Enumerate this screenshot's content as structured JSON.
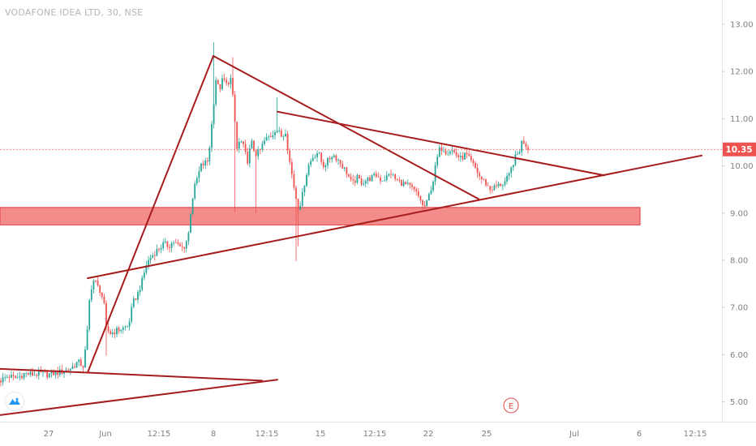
{
  "chart_data": {
    "type": "candlestick",
    "title": "VODAFONE IDEA LTD, 30, NSE",
    "y_axis": {
      "position": "right",
      "range": [
        4.75,
        13.35
      ],
      "ticks": [
        "13.00",
        "12.00",
        "11.00",
        "10.00",
        "9.00",
        "8.00",
        "7.00",
        "6.00",
        "5.00"
      ]
    },
    "x_axis": {
      "ticks": [
        "27",
        "Jun",
        "12:15",
        "8",
        "12:15",
        "15",
        "12:15",
        "22",
        "25",
        "Jul",
        "6",
        "12:15"
      ]
    },
    "last_price": "10.35",
    "colors": {
      "up": "#26a69a",
      "down": "#ef5350",
      "trendline": "#a61c1c",
      "zone": "#f26c6c"
    },
    "support_zone": {
      "low": 8.75,
      "high": 9.12
    },
    "trendlines": [
      {
        "from": [
          0,
          5.7
        ],
        "to": [
          108,
          5.62
        ]
      },
      {
        "from": [
          108,
          5.62
        ],
        "to": [
          323,
          5.45
        ]
      },
      {
        "from": [
          0,
          4.72
        ],
        "to": [
          342,
          5.47
        ]
      },
      {
        "from": [
          108,
          5.62
        ],
        "to": [
          263,
          12.33
        ]
      },
      {
        "from": [
          263,
          12.33
        ],
        "to": [
          590,
          9.3
        ]
      },
      {
        "from": [
          342,
          11.15
        ],
        "to": [
          745,
          9.8
        ]
      },
      {
        "from": [
          108,
          7.62
        ],
        "to": [
          865,
          10.22
        ]
      }
    ],
    "event_marker": {
      "label": "E"
    },
    "series_path": [
      [
        0,
        5.45
      ],
      [
        10,
        5.55
      ],
      [
        20,
        5.5
      ],
      [
        30,
        5.6
      ],
      [
        40,
        5.58
      ],
      [
        50,
        5.6
      ],
      [
        60,
        5.58
      ],
      [
        70,
        5.62
      ],
      [
        80,
        5.65
      ],
      [
        88,
        5.72
      ],
      [
        96,
        5.85
      ],
      [
        103,
        5.75
      ],
      [
        108,
        6.55
      ],
      [
        111,
        7.35
      ],
      [
        116,
        7.6
      ],
      [
        120,
        7.45
      ],
      [
        124,
        7.35
      ],
      [
        128,
        7.1
      ],
      [
        131,
        6.55
      ],
      [
        136,
        6.45
      ],
      [
        142,
        6.5
      ],
      [
        150,
        6.55
      ],
      [
        158,
        6.6
      ],
      [
        164,
        7.1
      ],
      [
        170,
        7.3
      ],
      [
        176,
        7.6
      ],
      [
        180,
        7.9
      ],
      [
        185,
        8.05
      ],
      [
        190,
        8.15
      ],
      [
        196,
        8.25
      ],
      [
        202,
        8.35
      ],
      [
        208,
        8.3
      ],
      [
        214,
        8.4
      ],
      [
        220,
        8.3
      ],
      [
        226,
        8.25
      ],
      [
        232,
        8.5
      ],
      [
        236,
        9.2
      ],
      [
        240,
        9.55
      ],
      [
        244,
        9.8
      ],
      [
        248,
        10.0
      ],
      [
        252,
        10.05
      ],
      [
        256,
        10.1
      ],
      [
        259,
        10.5
      ],
      [
        263,
        11.25
      ],
      [
        266,
        11.85
      ],
      [
        270,
        11.6
      ],
      [
        275,
        11.85
      ],
      [
        280,
        11.7
      ],
      [
        284,
        11.9
      ],
      [
        288,
        11.3
      ],
      [
        292,
        10.35
      ],
      [
        296,
        10.55
      ],
      [
        300,
        10.4
      ],
      [
        305,
        10.1
      ],
      [
        310,
        10.5
      ],
      [
        315,
        10.25
      ],
      [
        320,
        10.3
      ],
      [
        325,
        10.5
      ],
      [
        330,
        10.6
      ],
      [
        335,
        10.65
      ],
      [
        340,
        10.8
      ],
      [
        344,
        10.7
      ],
      [
        348,
        10.6
      ],
      [
        352,
        10.75
      ],
      [
        356,
        10.2
      ],
      [
        360,
        9.8
      ],
      [
        364,
        9.4
      ],
      [
        368,
        9.1
      ],
      [
        372,
        9.3
      ],
      [
        376,
        9.7
      ],
      [
        380,
        10.0
      ],
      [
        386,
        10.2
      ],
      [
        392,
        10.3
      ],
      [
        398,
        10.0
      ],
      [
        404,
        10.1
      ],
      [
        410,
        10.25
      ],
      [
        416,
        10.15
      ],
      [
        422,
        10.0
      ],
      [
        428,
        9.85
      ],
      [
        434,
        9.6
      ],
      [
        440,
        9.75
      ],
      [
        446,
        9.65
      ],
      [
        452,
        9.7
      ],
      [
        458,
        9.75
      ],
      [
        464,
        9.8
      ],
      [
        470,
        9.7
      ],
      [
        476,
        9.75
      ],
      [
        482,
        9.85
      ],
      [
        488,
        9.7
      ],
      [
        494,
        9.65
      ],
      [
        500,
        9.6
      ],
      [
        506,
        9.55
      ],
      [
        512,
        9.45
      ],
      [
        518,
        9.3
      ],
      [
        522,
        9.1
      ],
      [
        526,
        9.2
      ],
      [
        530,
        9.45
      ],
      [
        534,
        9.7
      ],
      [
        538,
        10.1
      ],
      [
        542,
        10.35
      ],
      [
        546,
        10.4
      ],
      [
        550,
        10.3
      ],
      [
        556,
        10.35
      ],
      [
        562,
        10.25
      ],
      [
        568,
        10.15
      ],
      [
        574,
        10.25
      ],
      [
        580,
        10.1
      ],
      [
        586,
        9.95
      ],
      [
        592,
        9.75
      ],
      [
        598,
        9.65
      ],
      [
        604,
        9.5
      ],
      [
        610,
        9.55
      ],
      [
        616,
        9.6
      ],
      [
        622,
        9.65
      ],
      [
        628,
        9.8
      ],
      [
        632,
        10.05
      ],
      [
        636,
        10.2
      ],
      [
        640,
        10.3
      ],
      [
        644,
        10.55
      ],
      [
        648,
        10.45
      ],
      [
        652,
        10.35
      ]
    ]
  }
}
